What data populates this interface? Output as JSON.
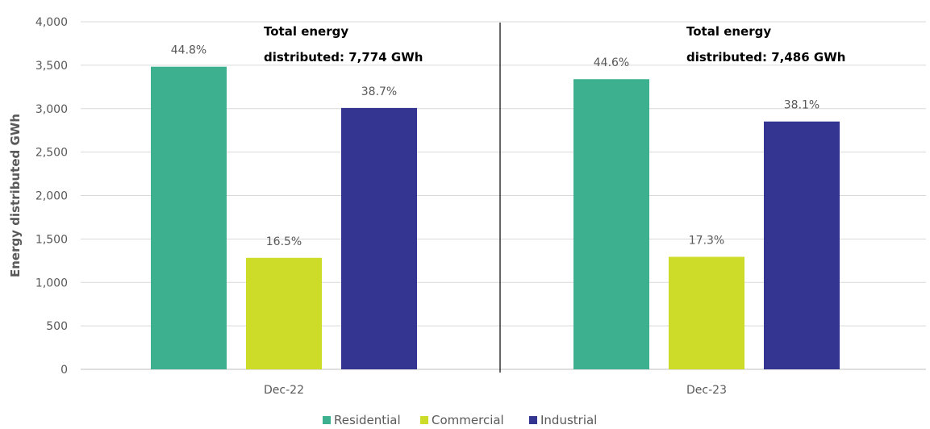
{
  "chart_data": {
    "type": "bar",
    "categories": [
      "Dec-22",
      "Dec-23"
    ],
    "series": [
      {
        "name": "Residential",
        "color": "#3DB08F",
        "values": [
          3483,
          3339
        ],
        "labels": [
          "44.8%",
          "44.6%"
        ]
      },
      {
        "name": "Commercial",
        "color": "#CDDC29",
        "values": [
          1283,
          1295
        ],
        "labels": [
          "16.5%",
          "17.3%"
        ]
      },
      {
        "name": "Industrial",
        "color": "#343591",
        "values": [
          3008,
          2852
        ],
        "labels": [
          "38.7%",
          "38.1%"
        ]
      }
    ],
    "ylabel": "Energy distributed GWh",
    "ylim": [
      0,
      4000
    ],
    "yticks": [
      0,
      500,
      1000,
      1500,
      2000,
      2500,
      3000,
      3500,
      4000
    ],
    "ytick_labels": [
      "0",
      "500",
      "1,000",
      "1,500",
      "2,000",
      "2,500",
      "3,000",
      "3,500",
      "4,000"
    ],
    "grid": true,
    "legend_position": "bottom",
    "annotations": [
      {
        "line1": "Total energy",
        "line2": "distributed: 7,774 GWh"
      },
      {
        "line1": "Total energy",
        "line2": "distributed: 7,486 GWh"
      }
    ]
  }
}
